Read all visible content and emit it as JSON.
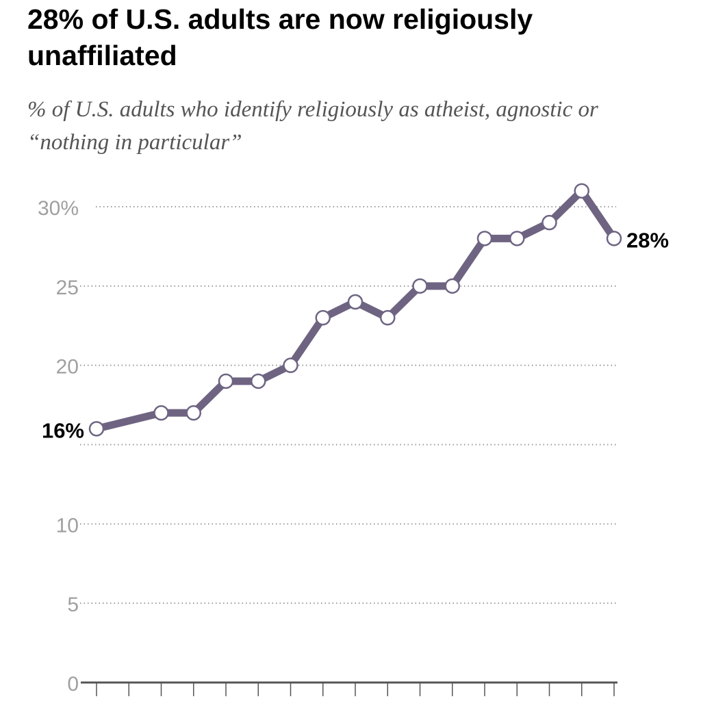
{
  "chart_data": {
    "type": "line",
    "title": "28% of U.S. adults are now religiously unaffiliated",
    "subtitle": "% of U.S. adults who identify religiously as atheist, agnostic or “nothing in particular”",
    "xlabel": "",
    "ylabel": "",
    "ylim": [
      0,
      30
    ],
    "yticks": [
      {
        "value": 30,
        "label": "30%"
      },
      {
        "value": 25,
        "label": "25"
      },
      {
        "value": 20,
        "label": "20"
      },
      {
        "value": 15,
        "label": ""
      },
      {
        "value": 10,
        "label": "10"
      },
      {
        "value": 5,
        "label": "5"
      },
      {
        "value": 0,
        "label": "0"
      }
    ],
    "x_tick_count": 17,
    "values": [
      16,
      null,
      17,
      17,
      19,
      19,
      20,
      23,
      24,
      23,
      25,
      25,
      28,
      28,
      29,
      31,
      28
    ],
    "data_labels": {
      "first": "16%",
      "last": "28%"
    },
    "grid": true,
    "line_color": "#6e6482"
  }
}
